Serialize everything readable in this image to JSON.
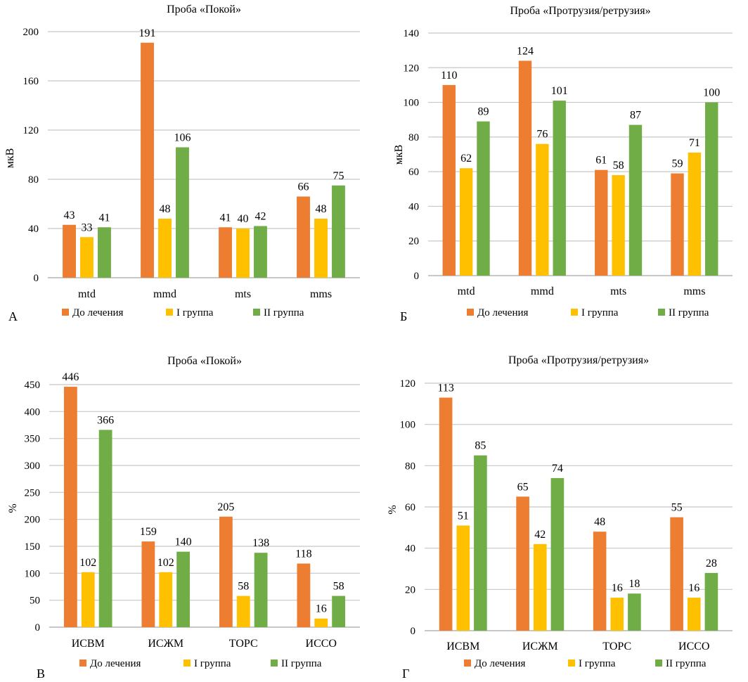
{
  "colors": {
    "before": "#ed7d31",
    "group1": "#ffc000",
    "group2": "#70ad47"
  },
  "legend": [
    "До лечения",
    "I группа",
    "II группа"
  ],
  "chart_data": [
    {
      "panel": "А",
      "type": "bar",
      "title": "Проба «Покой»",
      "ylabel": "мкВ",
      "xlabel": "",
      "categories": [
        "mtd",
        "mmd",
        "mts",
        "mms"
      ],
      "series": [
        {
          "name": "До лечения",
          "values": [
            43,
            191,
            41,
            66
          ]
        },
        {
          "name": "I группа",
          "values": [
            33,
            48,
            40,
            48
          ]
        },
        {
          "name": "II группа",
          "values": [
            41,
            106,
            42,
            75
          ]
        }
      ],
      "ylim": [
        0,
        200
      ],
      "yticks": [
        0,
        40,
        80,
        120,
        160,
        200
      ],
      "grid": true,
      "legend_position": "bottom"
    },
    {
      "panel": "Б",
      "type": "bar",
      "title": "Проба «Протрузия/ретрузия»",
      "ylabel": "мкВ",
      "xlabel": "",
      "categories": [
        "mtd",
        "mmd",
        "mts",
        "mms"
      ],
      "series": [
        {
          "name": "До лечения",
          "values": [
            110,
            124,
            61,
            59
          ]
        },
        {
          "name": "I группа",
          "values": [
            62,
            76,
            58,
            71
          ]
        },
        {
          "name": "II группа",
          "values": [
            89,
            101,
            87,
            100
          ]
        }
      ],
      "ylim": [
        0,
        140
      ],
      "yticks": [
        0,
        20,
        40,
        60,
        80,
        100,
        120,
        140
      ],
      "grid": true,
      "legend_position": "bottom"
    },
    {
      "panel": "В",
      "type": "bar",
      "title": "Проба «Покой»",
      "ylabel": "%",
      "xlabel": "",
      "categories": [
        "ИСВМ",
        "ИСЖМ",
        "ТОРС",
        "ИССО"
      ],
      "series": [
        {
          "name": "До лечения",
          "values": [
            446,
            159,
            205,
            118
          ]
        },
        {
          "name": "I группа",
          "values": [
            102,
            102,
            58,
            16
          ]
        },
        {
          "name": "II группа",
          "values": [
            366,
            140,
            138,
            58
          ]
        }
      ],
      "ylim": [
        0,
        450
      ],
      "yticks": [
        0,
        50,
        100,
        150,
        200,
        250,
        300,
        350,
        400,
        450
      ],
      "grid": true,
      "legend_position": "bottom"
    },
    {
      "panel": "Г",
      "type": "bar",
      "title": "Проба «Протрузия/ретрузия»",
      "ylabel": "%",
      "xlabel": "",
      "categories": [
        "ИСВМ",
        "ИСЖМ",
        "ТОРС",
        "ИССО"
      ],
      "series": [
        {
          "name": "До лечения",
          "values": [
            113,
            65,
            48,
            55
          ]
        },
        {
          "name": "I группа",
          "values": [
            51,
            42,
            16,
            16
          ]
        },
        {
          "name": "II группа",
          "values": [
            85,
            74,
            18,
            28
          ]
        }
      ],
      "ylim": [
        0,
        120
      ],
      "yticks": [
        0,
        20,
        40,
        60,
        80,
        100,
        120
      ],
      "grid": true,
      "legend_position": "bottom"
    }
  ]
}
